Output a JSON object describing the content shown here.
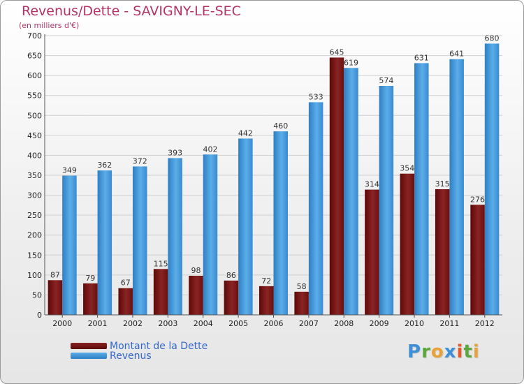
{
  "title": "Revenus/Dette - SAVIGNY-LE-SEC",
  "subtitle": "(en milliers d'€)",
  "colors": {
    "title": "#b33366",
    "dette": "#7a1414",
    "revenus": "#3d93d9",
    "legend_text": "#3366cc",
    "grid": "#d0d0d0",
    "axis_text": "#222222",
    "value_text": "#333333"
  },
  "chart_data": {
    "type": "bar",
    "title": "Revenus/Dette - SAVIGNY-LE-SEC",
    "ylabel": "(en milliers d'€)",
    "categories": [
      "2000",
      "2001",
      "2002",
      "2003",
      "2004",
      "2005",
      "2006",
      "2007",
      "2008",
      "2009",
      "2010",
      "2011",
      "2012"
    ],
    "series": [
      {
        "name": "Montant de la Dette",
        "values": [
          87,
          79,
          67,
          115,
          98,
          86,
          72,
          58,
          645,
          314,
          354,
          315,
          276
        ]
      },
      {
        "name": "Revenus",
        "values": [
          349,
          362,
          372,
          393,
          402,
          442,
          460,
          533,
          619,
          574,
          631,
          641,
          680
        ]
      }
    ],
    "ylim": [
      0,
      700
    ],
    "yticks": [
      0,
      50,
      100,
      150,
      200,
      250,
      300,
      350,
      400,
      450,
      500,
      550,
      600,
      650,
      700
    ],
    "grid": true,
    "legend_position": "bottom-left",
    "data_labels": true
  },
  "legend": {
    "items": [
      {
        "label": "Montant de la Dette",
        "color": "#7a1414"
      },
      {
        "label": "Revenus",
        "color": "#3d93d9"
      }
    ]
  },
  "logo": {
    "letters": [
      {
        "char": "P",
        "color": "#3d8fd6"
      },
      {
        "char": "r",
        "color": "#5aa83c"
      },
      {
        "char": "o",
        "color": "#e8a23a"
      },
      {
        "char": "x",
        "color": "#3d8fd6"
      },
      {
        "char": "i",
        "color": "#e85a2a"
      },
      {
        "char": "t",
        "color": "#5aa83c"
      },
      {
        "char": "i",
        "color": "#e8a23a"
      }
    ]
  }
}
